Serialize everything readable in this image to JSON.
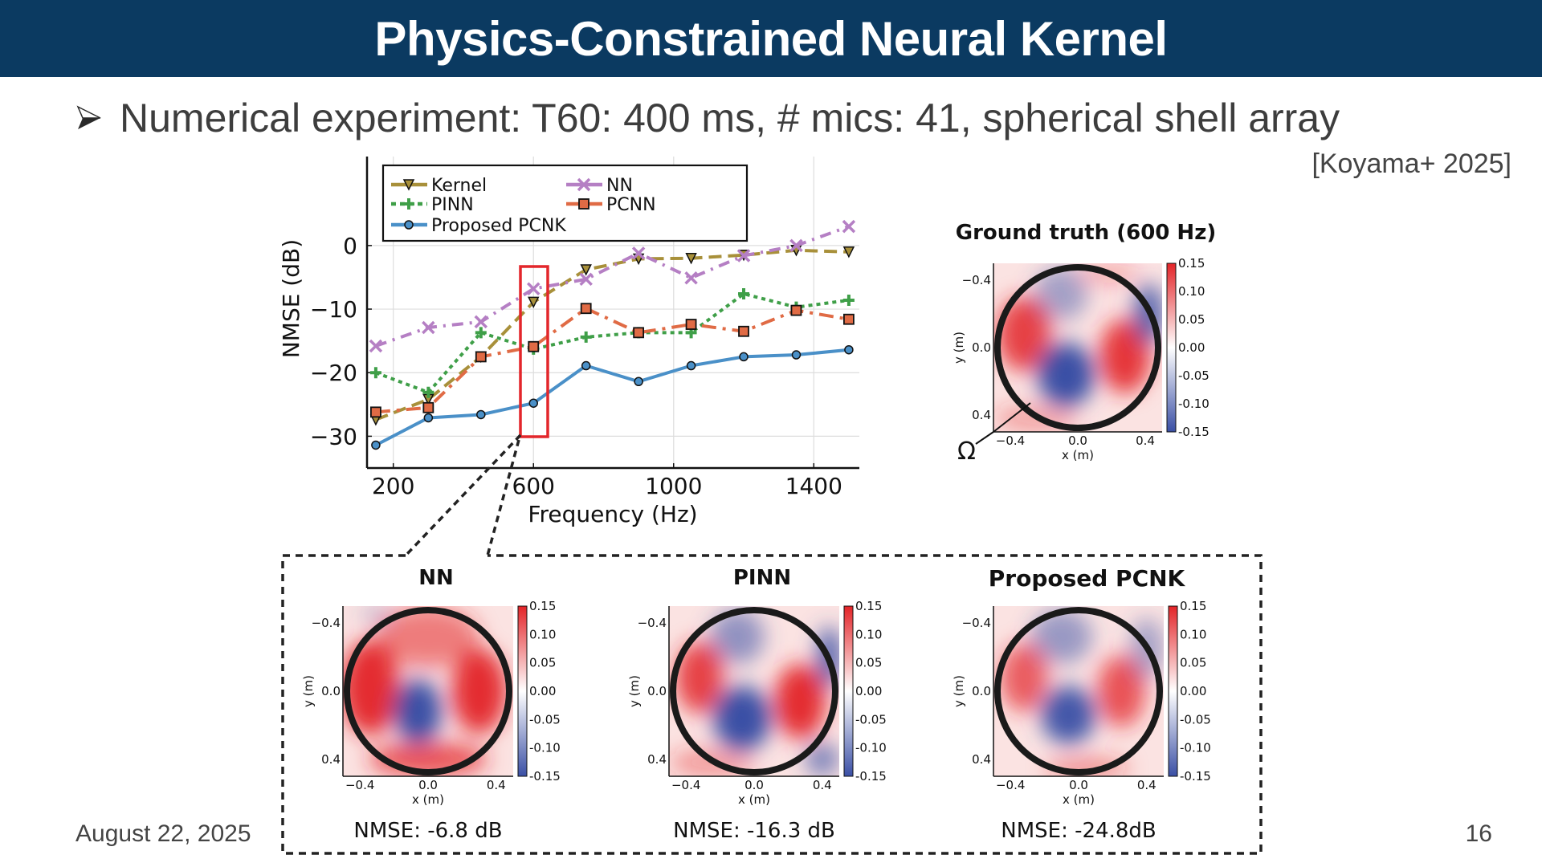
{
  "slide": {
    "title": "Physics-Constrained Neural Kernel",
    "bullet": "Numerical experiment: T60: 400 ms, # mics: 41, spherical shell array",
    "citation": "[Koyama+ 2025]",
    "date": "August 22, 2025",
    "page_number": "16",
    "colors": {
      "title_bar": "#0b3a61",
      "kernel": "#a8903a",
      "nn": "#b57fc4",
      "pinn": "#3f9f48",
      "pcnn": "#e06b45",
      "pcnk": "#4a90c8",
      "highlight": "#e3262b",
      "cmap_neg": "#3a4fa5",
      "cmap_pos": "#e32428"
    }
  },
  "chart_data": [
    {
      "type": "line",
      "title": "",
      "xlabel": "Frequency (Hz)",
      "ylabel": "NMSE (dB)",
      "xlim": [
        125,
        1530
      ],
      "ylim": [
        -35,
        14
      ],
      "xticks": [
        200,
        600,
        1000,
        1400
      ],
      "xtick_labels": [
        "200",
        "600",
        "1000",
        "1400"
      ],
      "yticks": [
        0,
        -10,
        -20,
        -30
      ],
      "ytick_labels": [
        "0",
        "−10",
        "−20",
        "−30"
      ],
      "grid": true,
      "legend_position": "top-left",
      "x": [
        150,
        300,
        450,
        600,
        750,
        900,
        1050,
        1200,
        1350,
        1500
      ],
      "series": [
        {
          "name": "Kernel",
          "key": "kernel",
          "marker": "triangle-down",
          "dash": "long-dash",
          "values": [
            -27.4,
            -24.2,
            -17.5,
            -8.9,
            -3.8,
            -2.1,
            -2.0,
            -1.5,
            -0.75,
            -1.0
          ]
        },
        {
          "name": "NN",
          "key": "nn",
          "marker": "x",
          "dash": "dash-dot",
          "values": [
            -15.8,
            -12.9,
            -12.0,
            -6.8,
            -5.3,
            -1.2,
            -5.1,
            -1.6,
            0.0,
            3.0
          ]
        },
        {
          "name": "PINN",
          "key": "pinn",
          "marker": "plus",
          "dash": "dotted",
          "values": [
            -20.0,
            -23.1,
            -13.7,
            -16.3,
            -14.4,
            -13.7,
            -13.7,
            -7.6,
            -9.7,
            -8.6
          ]
        },
        {
          "name": "PCNN",
          "key": "pcnn",
          "marker": "square",
          "dash": "dash-dot-long",
          "values": [
            -26.2,
            -25.5,
            -17.5,
            -15.9,
            -9.9,
            -13.7,
            -12.4,
            -13.5,
            -10.2,
            -11.6
          ]
        },
        {
          "name": "Proposed PCNK",
          "key": "pcnk",
          "marker": "circle",
          "dash": "solid",
          "values": [
            -31.4,
            -27.1,
            -26.6,
            -24.8,
            -18.9,
            -21.4,
            -18.9,
            -17.5,
            -17.2,
            -16.4
          ]
        }
      ],
      "highlight": {
        "x": 600,
        "label": "600 Hz selection"
      }
    },
    {
      "type": "heatmap",
      "title": "Ground truth (600 Hz)",
      "xlabel": "x (m)",
      "ylabel": "y (m)",
      "xticks": [
        "−0.4",
        "0.0",
        "0.4"
      ],
      "yticks": [
        "−0.4",
        "0.0",
        "0.4"
      ],
      "colorbar_ticks": [
        "0.15",
        "0.10",
        "0.05",
        "0.00",
        "-0.05",
        "-0.10",
        "-0.15"
      ],
      "vmin": -0.15,
      "vmax": 0.15,
      "region_label": "Ω"
    },
    {
      "type": "heatmap",
      "title": "NN",
      "xlabel": "x (m)",
      "ylabel": "y (m)",
      "xticks": [
        "−0.4",
        "0.0",
        "0.4"
      ],
      "yticks": [
        "−0.4",
        "0.0",
        "0.4"
      ],
      "colorbar_ticks": [
        "0.15",
        "0.10",
        "0.05",
        "0.00",
        "-0.05",
        "-0.10",
        "-0.15"
      ],
      "vmin": -0.15,
      "vmax": 0.15,
      "nmse": "NMSE: -6.8 dB"
    },
    {
      "type": "heatmap",
      "title": "PINN",
      "xlabel": "x (m)",
      "ylabel": "y (m)",
      "xticks": [
        "−0.4",
        "0.0",
        "0.4"
      ],
      "yticks": [
        "−0.4",
        "0.0",
        "0.4"
      ],
      "colorbar_ticks": [
        "0.15",
        "0.10",
        "0.05",
        "0.00",
        "-0.05",
        "-0.10",
        "-0.15"
      ],
      "vmin": -0.15,
      "vmax": 0.15,
      "nmse": "NMSE: -16.3 dB"
    },
    {
      "type": "heatmap",
      "title": "Proposed PCNK",
      "xlabel": "x (m)",
      "ylabel": "y (m)",
      "xticks": [
        "−0.4",
        "0.0",
        "0.4"
      ],
      "yticks": [
        "−0.4",
        "0.0",
        "0.4"
      ],
      "colorbar_ticks": [
        "0.15",
        "0.10",
        "0.05",
        "0.00",
        "-0.05",
        "-0.10",
        "-0.15"
      ],
      "vmin": -0.15,
      "vmax": 0.15,
      "nmse": "NMSE: -24.8dB"
    }
  ]
}
